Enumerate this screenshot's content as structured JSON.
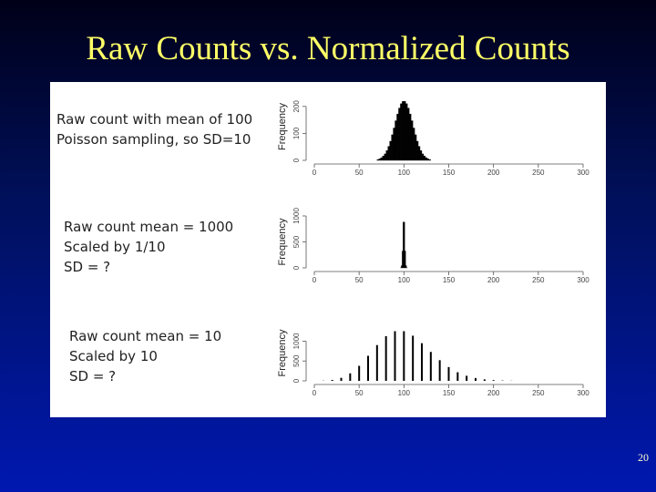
{
  "slide": {
    "title": "Raw Counts vs. Normalized Counts",
    "page_number": "20"
  },
  "chart_data": [
    {
      "type": "histogram",
      "annotation": [
        "Raw count with mean of 100",
        "Poisson sampling, so SD=10"
      ],
      "y_label": "Frequency",
      "bins": [
        70,
        72,
        74,
        76,
        78,
        80,
        82,
        84,
        86,
        88,
        90,
        92,
        94,
        96,
        98,
        100,
        102,
        104,
        106,
        108,
        110,
        112,
        114,
        116,
        118,
        120,
        122,
        124,
        126,
        128,
        130
      ],
      "values": [
        3,
        6,
        10,
        16,
        24,
        36,
        52,
        71,
        95,
        120,
        147,
        172,
        194,
        210,
        219,
        219,
        210,
        194,
        172,
        147,
        120,
        95,
        71,
        52,
        36,
        24,
        16,
        10,
        6,
        3
      ],
      "color": "#000000",
      "xlim": [
        0,
        300
      ],
      "xticks": [
        0,
        50,
        100,
        150,
        200,
        250,
        300
      ],
      "ylim": [
        0,
        250
      ],
      "yticks": [
        0,
        100,
        200
      ]
    },
    {
      "type": "histogram",
      "annotation": [
        "Raw count mean = 1000",
        "Scaled by 1/10",
        "SD = ?"
      ],
      "y_label": "Frequency",
      "bins": [
        95,
        96,
        97,
        98,
        99,
        100,
        101,
        102,
        103,
        104,
        105
      ],
      "values": [
        0,
        2,
        44,
        325,
        882,
        882,
        325,
        44,
        2,
        0
      ],
      "color": "#000000",
      "xlim": [
        0,
        300
      ],
      "xticks": [
        0,
        50,
        100,
        150,
        200,
        250,
        300
      ],
      "ylim": [
        0,
        1000
      ],
      "yticks": [
        0,
        500,
        1000
      ]
    },
    {
      "type": "bar",
      "annotation": [
        "Raw count mean = 10",
        "Scaled by 10",
        "SD = ?"
      ],
      "y_label": "Frequency",
      "x": [
        0,
        10,
        20,
        30,
        40,
        50,
        60,
        70,
        80,
        90,
        100,
        110,
        120,
        130,
        140,
        150,
        160,
        170,
        180,
        190,
        200,
        210,
        220
      ],
      "values": [
        0,
        5,
        23,
        76,
        189,
        378,
        631,
        901,
        1126,
        1251,
        1251,
        1137,
        948,
        729,
        521,
        347,
        217,
        128,
        71,
        37,
        19,
        9,
        4
      ],
      "color": "#000000",
      "xlim": [
        0,
        300
      ],
      "xticks": [
        0,
        50,
        100,
        150,
        200,
        250,
        300
      ],
      "ylim": [
        0,
        1400
      ],
      "yticks": [
        0,
        500,
        1000
      ]
    }
  ]
}
